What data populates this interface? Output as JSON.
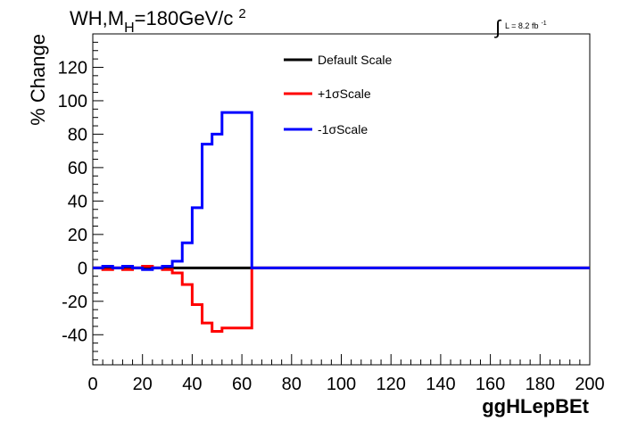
{
  "chart_data": {
    "type": "line",
    "style": "step",
    "title_main": "WH,M",
    "title_sub": "H",
    "title_value": "=180GeV/c",
    "title_sup": "2",
    "lumi_label": "L = 8.2 fb",
    "lumi_sup": "-1",
    "xlabel": "ggHLepBEt",
    "ylabel": "% Change",
    "xlim": [
      0,
      200
    ],
    "ylim": [
      -58,
      140
    ],
    "xticks": [
      0,
      20,
      40,
      60,
      80,
      100,
      120,
      140,
      160,
      180,
      200
    ],
    "yticks": [
      -40,
      -20,
      0,
      20,
      40,
      60,
      80,
      100,
      120
    ],
    "grid": false,
    "legend_position": "top-center",
    "bin_edges": [
      0,
      4,
      8,
      12,
      16,
      20,
      24,
      28,
      32,
      36,
      40,
      44,
      48,
      52,
      56,
      64,
      200
    ],
    "series": [
      {
        "name": "Default Scale",
        "color": "#000000",
        "values": [
          0,
          0,
          0,
          0,
          0,
          0,
          0,
          0,
          0,
          0,
          0,
          0,
          0,
          0,
          0,
          0
        ]
      },
      {
        "name": "+1σScale",
        "color": "#ff0000",
        "values": [
          0,
          -1,
          0,
          -1,
          0,
          1,
          0,
          -1,
          -3,
          -10,
          -22,
          -33,
          -38,
          -36,
          -36,
          0
        ]
      },
      {
        "name": "-1σScale",
        "color": "#0000ff",
        "values": [
          0,
          1,
          0,
          1,
          0,
          -1,
          0,
          1,
          4,
          15,
          36,
          74,
          80,
          93,
          93,
          0
        ]
      }
    ]
  }
}
